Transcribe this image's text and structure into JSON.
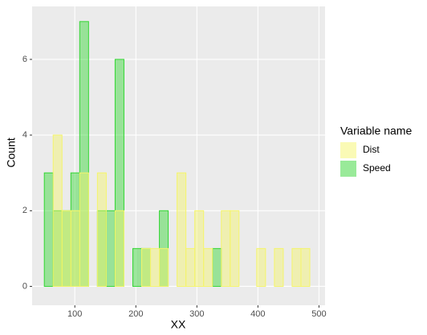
{
  "chart_data": {
    "type": "histogram",
    "x_label": "XX",
    "y_label": "Count",
    "legend_title": "Variable name",
    "bins": [
      50,
      64.5,
      79,
      93.5,
      108,
      122.5,
      137,
      151.5,
      166,
      180.5,
      195,
      209.5,
      224,
      238.5,
      253,
      267.5,
      282,
      296.5,
      311,
      325.5,
      340,
      354.5,
      369,
      383.5,
      398,
      412.5,
      427,
      441.5,
      456,
      470.5,
      485
    ],
    "series": [
      {
        "name": "Dist",
        "color": "#f5f56b",
        "values": [
          0,
          4,
          2,
          2,
          3,
          0,
          3,
          0,
          2,
          0,
          0,
          1,
          1,
          1,
          0,
          3,
          1,
          2,
          1,
          0,
          2,
          2,
          0,
          0,
          1,
          0,
          1,
          0,
          1,
          1
        ]
      },
      {
        "name": "Speed",
        "color": "#33d633",
        "values": [
          3,
          2,
          2,
          3,
          7,
          0,
          2,
          2,
          6,
          0,
          1,
          1,
          0,
          2,
          0,
          0,
          0,
          0,
          0,
          1,
          0,
          0,
          0,
          0,
          0,
          0,
          0,
          0,
          0,
          0
        ]
      }
    ],
    "xlim": [
      30,
      510
    ],
    "xticks": [
      100,
      200,
      300,
      400,
      500
    ],
    "ylim": [
      -0.5,
      7.4
    ],
    "yticks": [
      0,
      2,
      4,
      6
    ],
    "grid": true
  }
}
